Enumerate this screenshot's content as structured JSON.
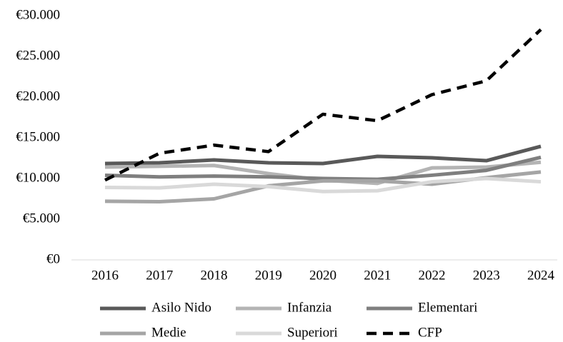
{
  "chart_data": {
    "type": "line",
    "categories": [
      "2016",
      "2017",
      "2018",
      "2019",
      "2020",
      "2021",
      "2022",
      "2023",
      "2024"
    ],
    "series": [
      {
        "name": "Asilo Nido",
        "color": "#595959",
        "dash": false,
        "values": [
          11840,
          11930,
          12280,
          11930,
          11840,
          12720,
          12540,
          12190,
          13950
        ]
      },
      {
        "name": "Infanzia",
        "color": "#b4b4b4",
        "dash": false,
        "values": [
          11400,
          11500,
          11600,
          10600,
          9800,
          9400,
          11300,
          11400,
          12000
        ]
      },
      {
        "name": "Elementari",
        "color": "#7f7f7f",
        "dash": false,
        "values": [
          10400,
          10200,
          10300,
          10200,
          10000,
          9900,
          10400,
          11000,
          12600
        ]
      },
      {
        "name": "Medie",
        "color": "#a5a5a5",
        "dash": false,
        "values": [
          7200,
          7150,
          7500,
          9100,
          9700,
          9700,
          9300,
          10100,
          10800
        ]
      },
      {
        "name": "Superiori",
        "color": "#d9d9d9",
        "dash": false,
        "values": [
          8900,
          8850,
          9300,
          9000,
          8400,
          8500,
          9600,
          10000,
          9600
        ]
      },
      {
        "name": "CFP",
        "color": "#000000",
        "dash": true,
        "values": [
          9800,
          13100,
          14100,
          13300,
          17900,
          17100,
          20300,
          22000,
          28300
        ]
      }
    ],
    "ylim": [
      0,
      30000
    ],
    "yticks": [
      {
        "value": 0,
        "label": "€0"
      },
      {
        "value": 5000,
        "label": "€5.000"
      },
      {
        "value": 10000,
        "label": "€10.000"
      },
      {
        "value": 15000,
        "label": "€15.000"
      },
      {
        "value": 20000,
        "label": "€20.000"
      },
      {
        "value": 25000,
        "label": "€25.000"
      },
      {
        "value": 30000,
        "label": "€30.000"
      }
    ],
    "grid": false,
    "legend": "bottom"
  }
}
